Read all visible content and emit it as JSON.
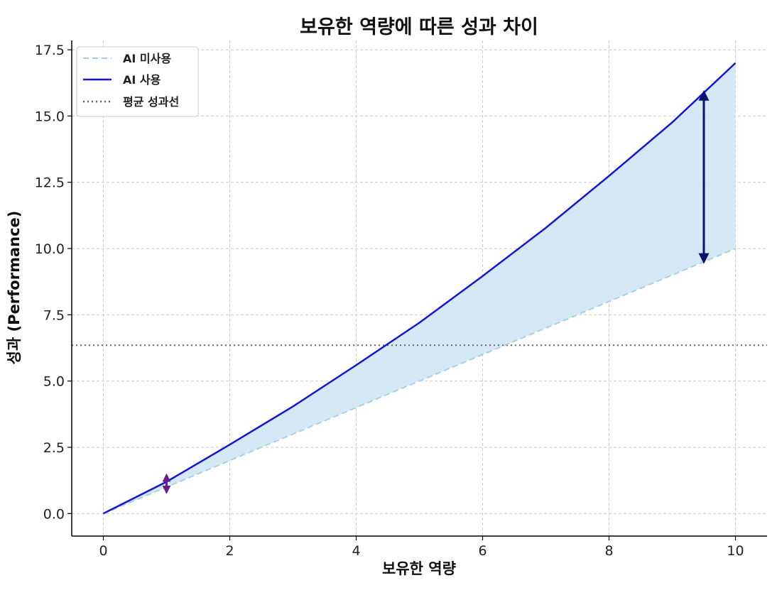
{
  "chart_data": {
    "type": "line",
    "title": "보유한 역량에 따른 성과 차이",
    "xlabel": "보유한 역량",
    "ylabel": "성과 (Performance)",
    "xlim": [
      -0.5,
      10.5
    ],
    "ylim": [
      -0.85,
      17.85
    ],
    "xticks": [
      0,
      2,
      4,
      6,
      8,
      10
    ],
    "yticks": [
      0.0,
      2.5,
      5.0,
      7.5,
      10.0,
      12.5,
      15.0,
      17.5
    ],
    "xtick_labels": [
      "0",
      "2",
      "4",
      "6",
      "8",
      "10"
    ],
    "ytick_labels": [
      "0.0",
      "2.5",
      "5.0",
      "7.5",
      "10.0",
      "12.5",
      "15.0",
      "17.5"
    ],
    "grid": true,
    "legend_position": "top-left",
    "series": [
      {
        "name": "AI 미사용",
        "style": "dashed",
        "color": "#a8d0e6",
        "x": [
          0,
          1,
          2,
          3,
          4,
          5,
          6,
          7,
          8,
          9,
          10
        ],
        "values": [
          0,
          1,
          2,
          3,
          4,
          5,
          6,
          7,
          8,
          9,
          10
        ]
      },
      {
        "name": "AI 사용",
        "style": "solid",
        "color": "#1515d6",
        "x": [
          0,
          1,
          2,
          3,
          4,
          5,
          6,
          7,
          8,
          9,
          10
        ],
        "values": [
          0,
          1.2,
          2.6,
          4.04,
          5.6,
          7.2,
          8.96,
          10.78,
          12.74,
          14.76,
          17.0
        ]
      }
    ],
    "reference_lines": [
      {
        "name": "평균 성과선",
        "style": "dotted",
        "color": "#666666",
        "y": 6.35
      }
    ],
    "fill_between": {
      "between": [
        "AI 미사용",
        "AI 사용"
      ],
      "color": "#cfe6f5"
    },
    "annotations": [
      {
        "type": "double-arrow",
        "x": 9.5,
        "y_from": 9.5,
        "y_to": 15.9,
        "color": "#0c1270"
      },
      {
        "type": "double-arrow",
        "x": 1.0,
        "y_from": 0.8,
        "y_to": 1.45,
        "color": "#6a1b8a"
      }
    ]
  }
}
